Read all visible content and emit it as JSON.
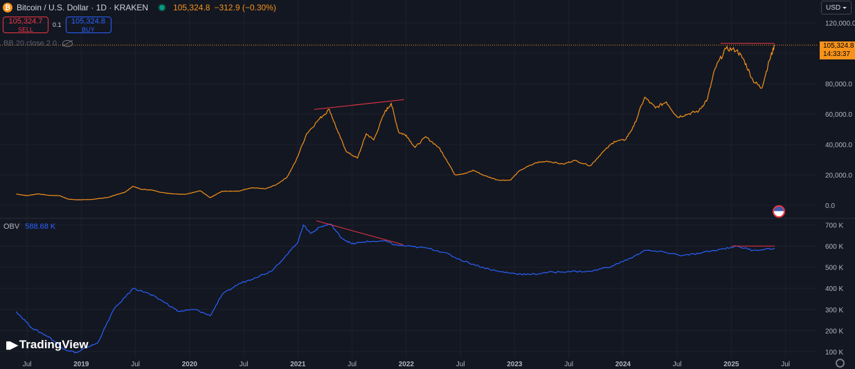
{
  "header": {
    "coin_symbol": "₿",
    "symbol": "Bitcoin / U.S. Dollar · 1D · KRAKEN",
    "price": "105,324.8",
    "change": "−312.9 (−0.30%)"
  },
  "trade": {
    "sell_price": "105,324.7",
    "sell_label": "SELL",
    "spread": "0.1",
    "buy_price": "105,324.8",
    "buy_label": "BUY"
  },
  "indicator": {
    "bb_label": "BB 20 close 2 0"
  },
  "obv": {
    "label": "OBV",
    "value": "588.68 K"
  },
  "currency": "USD",
  "price_tag": {
    "price": "105,324.8",
    "countdown": "14:33:37"
  },
  "branding": {
    "logo_text": "TradingView"
  },
  "colors": {
    "background": "#131722",
    "price_line": "#f7931a",
    "obv_line": "#2962ff",
    "trend_line": "#f23645",
    "grid": "#1e222d"
  },
  "chart_data": [
    {
      "type": "line",
      "series": [
        {
          "values": [
            [
              2018.4,
              7400
            ],
            [
              2018.5,
              6300
            ],
            [
              2018.6,
              7500
            ],
            [
              2018.7,
              6500
            ],
            [
              2018.8,
              6300
            ],
            [
              2018.88,
              4000
            ],
            [
              2018.96,
              3600
            ],
            [
              2019.1,
              3800
            ],
            [
              2019.25,
              5200
            ],
            [
              2019.4,
              8500
            ],
            [
              2019.48,
              12500
            ],
            [
              2019.55,
              10500
            ],
            [
              2019.65,
              10000
            ],
            [
              2019.75,
              8300
            ],
            [
              2019.85,
              7500
            ],
            [
              2019.96,
              7200
            ],
            [
              2020.1,
              9500
            ],
            [
              2020.19,
              5000
            ],
            [
              2020.3,
              9200
            ],
            [
              2020.45,
              9200
            ],
            [
              2020.58,
              11500
            ],
            [
              2020.7,
              10800
            ],
            [
              2020.8,
              13500
            ],
            [
              2020.9,
              18500
            ],
            [
              2020.98,
              29000
            ],
            [
              2021.08,
              47000
            ],
            [
              2021.2,
              57000
            ],
            [
              2021.29,
              63000
            ],
            [
              2021.37,
              48000
            ],
            [
              2021.45,
              35000
            ],
            [
              2021.55,
              31000
            ],
            [
              2021.63,
              47000
            ],
            [
              2021.7,
              43000
            ],
            [
              2021.8,
              61000
            ],
            [
              2021.86,
              67000
            ],
            [
              2021.93,
              48000
            ],
            [
              2022.0,
              46000
            ],
            [
              2022.08,
              38000
            ],
            [
              2022.18,
              45000
            ],
            [
              2022.3,
              38000
            ],
            [
              2022.37,
              30000
            ],
            [
              2022.45,
              20000
            ],
            [
              2022.55,
              21000
            ],
            [
              2022.62,
              23000
            ],
            [
              2022.72,
              19500
            ],
            [
              2022.85,
              16500
            ],
            [
              2022.96,
              16500
            ],
            [
              2023.05,
              23000
            ],
            [
              2023.2,
              28000
            ],
            [
              2023.3,
              29000
            ],
            [
              2023.45,
              27000
            ],
            [
              2023.55,
              29500
            ],
            [
              2023.7,
              26000
            ],
            [
              2023.8,
              34000
            ],
            [
              2023.92,
              42000
            ],
            [
              2024.02,
              43000
            ],
            [
              2024.1,
              52000
            ],
            [
              2024.2,
              71000
            ],
            [
              2024.3,
              64000
            ],
            [
              2024.4,
              68000
            ],
            [
              2024.5,
              58000
            ],
            [
              2024.6,
              60000
            ],
            [
              2024.7,
              62000
            ],
            [
              2024.78,
              70000
            ],
            [
              2024.85,
              90000
            ],
            [
              2024.95,
              103000
            ],
            [
              2025.05,
              102000
            ],
            [
              2025.12,
              95000
            ],
            [
              2025.2,
              82000
            ],
            [
              2025.28,
              77000
            ],
            [
              2025.35,
              95000
            ],
            [
              2025.4,
              105324.8
            ]
          ]
        }
      ],
      "ylim": [
        0,
        125000
      ],
      "yticks": [
        "120,000.0",
        "100,000.0",
        "80,000.0",
        "60,000.0",
        "40,000.0",
        "20,000.0",
        "0.0"
      ],
      "ytick_values": [
        120000,
        100000,
        80000,
        60000,
        40000,
        20000,
        0
      ],
      "last_price": 105324.8,
      "trend_lines": [
        {
          "x": [
            2021.15,
            2021.98
          ],
          "y": [
            63000,
            69500
          ]
        },
        {
          "x": [
            2024.9,
            2025.4
          ],
          "y": [
            106500,
            106500
          ]
        }
      ]
    },
    {
      "type": "line",
      "series": [
        {
          "values": [
            [
              2018.4,
              290
            ],
            [
              2018.55,
              210
            ],
            [
              2018.7,
              170
            ],
            [
              2018.85,
              110
            ],
            [
              2018.96,
              95
            ],
            [
              2019.05,
              120
            ],
            [
              2019.15,
              140
            ],
            [
              2019.3,
              300
            ],
            [
              2019.48,
              400
            ],
            [
              2019.6,
              380
            ],
            [
              2019.75,
              340
            ],
            [
              2019.9,
              290
            ],
            [
              2020.05,
              300
            ],
            [
              2020.19,
              270
            ],
            [
              2020.3,
              370
            ],
            [
              2020.45,
              420
            ],
            [
              2020.6,
              450
            ],
            [
              2020.75,
              480
            ],
            [
              2020.9,
              560
            ],
            [
              2021.0,
              620
            ],
            [
              2021.05,
              700
            ],
            [
              2021.12,
              660
            ],
            [
              2021.2,
              690
            ],
            [
              2021.3,
              705
            ],
            [
              2021.4,
              640
            ],
            [
              2021.5,
              610
            ],
            [
              2021.6,
              620
            ],
            [
              2021.8,
              625
            ],
            [
              2021.9,
              605
            ],
            [
              2022.0,
              600
            ],
            [
              2022.2,
              590
            ],
            [
              2022.35,
              570
            ],
            [
              2022.5,
              535
            ],
            [
              2022.7,
              500
            ],
            [
              2022.85,
              480
            ],
            [
              2023.0,
              470
            ],
            [
              2023.15,
              465
            ],
            [
              2023.3,
              475
            ],
            [
              2023.5,
              480
            ],
            [
              2023.7,
              480
            ],
            [
              2023.9,
              505
            ],
            [
              2024.1,
              550
            ],
            [
              2024.2,
              580
            ],
            [
              2024.4,
              570
            ],
            [
              2024.55,
              555
            ],
            [
              2024.7,
              565
            ],
            [
              2024.9,
              585
            ],
            [
              2025.05,
              600
            ],
            [
              2025.2,
              580
            ],
            [
              2025.4,
              590
            ]
          ]
        }
      ],
      "ylim": [
        70,
        725
      ],
      "yticks": [
        "700 K",
        "600 K",
        "500 K",
        "400 K",
        "300 K",
        "200 K",
        "100 K"
      ],
      "ytick_values": [
        700,
        600,
        500,
        400,
        300,
        200,
        100
      ],
      "trend_lines": [
        {
          "x": [
            2021.17,
            2021.97
          ],
          "y": [
            720,
            607
          ]
        },
        {
          "x": [
            2025.0,
            2025.4
          ],
          "y": [
            600,
            600
          ]
        }
      ]
    }
  ],
  "x_axis": {
    "labels": [
      "Jul",
      "2019",
      "Jul",
      "2020",
      "Jul",
      "2021",
      "Jul",
      "2022",
      "Jul",
      "2023",
      "Jul",
      "2024",
      "Jul",
      "2025",
      "Jul"
    ],
    "values": [
      2018.5,
      2019,
      2019.5,
      2020,
      2020.5,
      2021,
      2021.5,
      2022,
      2022.5,
      2023,
      2023.5,
      2024,
      2024.5,
      2025,
      2025.5
    ],
    "range": [
      2018.25,
      2025.79
    ]
  }
}
